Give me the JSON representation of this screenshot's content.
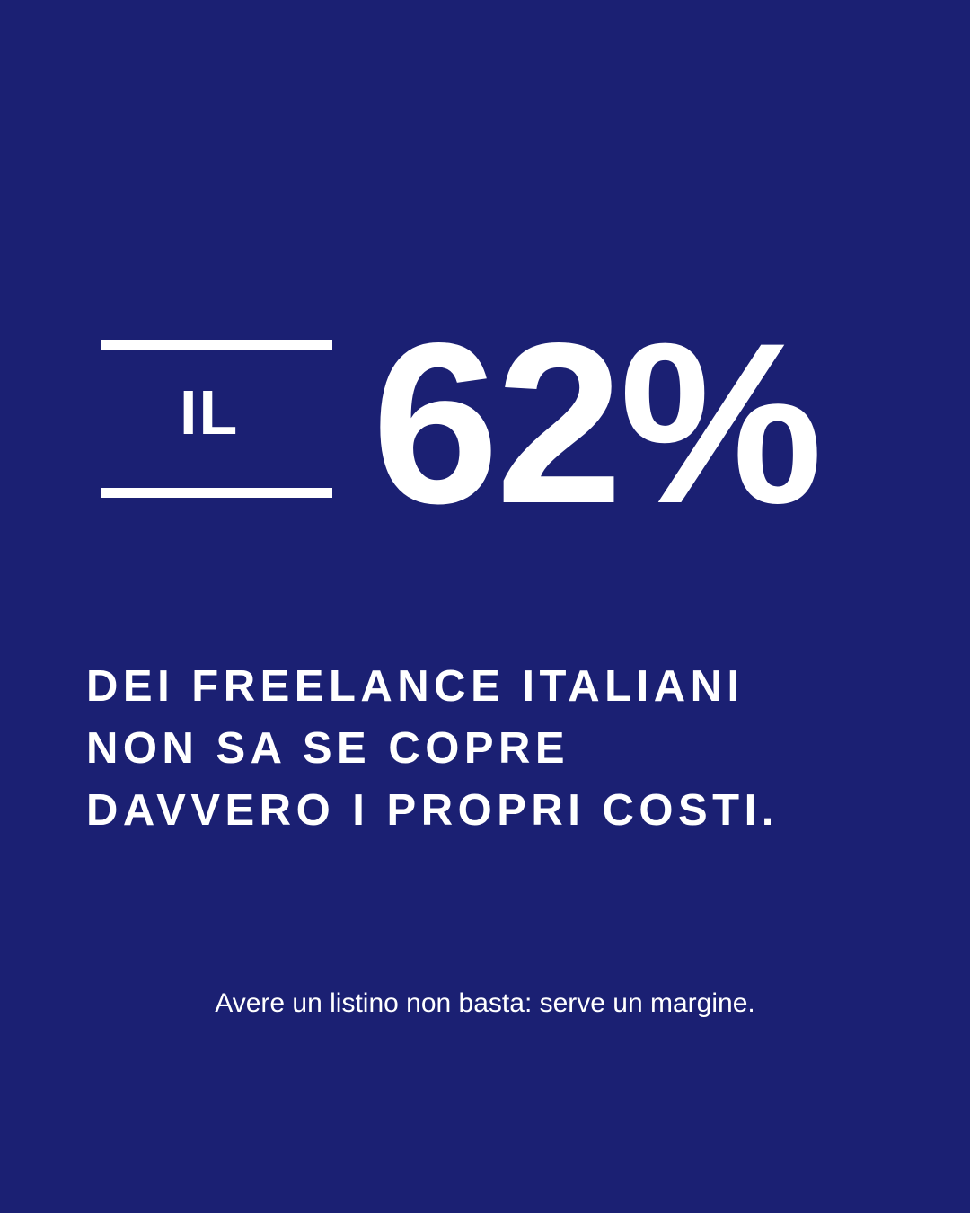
{
  "background_color": "#1b2073",
  "text_color": "#ffffff",
  "prefix": "IL",
  "stat": "62%",
  "headline": [
    "DEI FREELANCE ITALIANI",
    "NON SA SE COPRE",
    "DAVVERO I PROPRI COSTI."
  ],
  "footer": "Avere un listino non basta: serve un margine."
}
